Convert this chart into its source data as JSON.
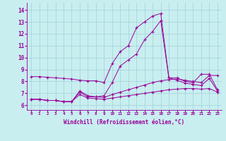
{
  "bg_color": "#c8eef0",
  "line_color": "#990099",
  "grid_color": "#a0d0d8",
  "xlabel": "Windchill (Refroidissement éolien,°C)",
  "ylabel_ticks": [
    6,
    7,
    8,
    9,
    10,
    11,
    12,
    13,
    14
  ],
  "xlim": [
    -0.5,
    23.5
  ],
  "ylim": [
    5.6,
    14.6
  ],
  "lines": [
    {
      "x": [
        0,
        1,
        2,
        3,
        4,
        5,
        6,
        7,
        8,
        9,
        10,
        11,
        12,
        13,
        14,
        15,
        16,
        17,
        18,
        19,
        20,
        21,
        22,
        23
      ],
      "y": [
        8.4,
        8.4,
        8.35,
        8.3,
        8.25,
        8.2,
        8.1,
        8.05,
        8.05,
        7.9,
        9.5,
        10.5,
        11.0,
        12.5,
        13.0,
        13.5,
        13.7,
        8.3,
        8.3,
        8.0,
        7.9,
        8.6,
        8.6,
        7.3
      ]
    },
    {
      "x": [
        0,
        1,
        2,
        3,
        4,
        5,
        6,
        7,
        8,
        9,
        10,
        11,
        12,
        13,
        14,
        15,
        16,
        17,
        18,
        19,
        20,
        21,
        22,
        23
      ],
      "y": [
        6.5,
        6.5,
        6.4,
        6.4,
        6.3,
        6.3,
        7.2,
        6.8,
        6.7,
        6.8,
        7.9,
        9.3,
        9.8,
        10.3,
        11.5,
        12.2,
        13.1,
        8.3,
        8.1,
        7.85,
        7.75,
        7.65,
        8.25,
        7.2
      ]
    },
    {
      "x": [
        0,
        1,
        2,
        3,
        4,
        5,
        6,
        7,
        8,
        9,
        10,
        11,
        12,
        13,
        14,
        15,
        16,
        17,
        18,
        19,
        20,
        21,
        22,
        23
      ],
      "y": [
        6.5,
        6.5,
        6.4,
        6.4,
        6.3,
        6.3,
        7.1,
        6.7,
        6.7,
        6.65,
        6.9,
        7.1,
        7.3,
        7.5,
        7.7,
        7.9,
        8.05,
        8.15,
        8.2,
        8.1,
        8.0,
        7.9,
        8.5,
        8.5
      ]
    },
    {
      "x": [
        0,
        1,
        2,
        3,
        4,
        5,
        6,
        7,
        8,
        9,
        10,
        11,
        12,
        13,
        14,
        15,
        16,
        17,
        18,
        19,
        20,
        21,
        22,
        23
      ],
      "y": [
        6.5,
        6.5,
        6.4,
        6.4,
        6.3,
        6.3,
        6.9,
        6.6,
        6.55,
        6.5,
        6.6,
        6.7,
        6.8,
        6.9,
        7.0,
        7.1,
        7.2,
        7.3,
        7.35,
        7.4,
        7.4,
        7.35,
        7.4,
        7.1
      ]
    }
  ]
}
